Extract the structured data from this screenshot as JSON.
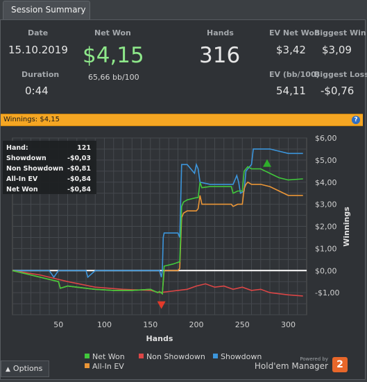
{
  "tab": {
    "label": "Session Summary"
  },
  "summary": {
    "date_label": "Date",
    "date_value": "15.10.2019",
    "net_won_label": "Net Won",
    "net_won_value": "$4,15",
    "bb_per_100": "65,66 bb/100",
    "hands_label": "Hands",
    "hands_value": "316",
    "ev_net_won_label": "EV Net Won",
    "ev_net_won_value": "$3,42",
    "biggest_win_label": "Biggest Win",
    "biggest_win_value": "$3,09",
    "duration_label": "Duration",
    "duration_value": "0:44",
    "ev_bb_label": "EV (bb/100)",
    "ev_bb_value": "54,11",
    "biggest_loss_label": "Biggest Loss",
    "biggest_loss_value": "-$0,76"
  },
  "winnings_bar": {
    "title": "Winnings: $4,15"
  },
  "tooltip": {
    "rows": [
      {
        "label": "Hand:",
        "value": "121"
      },
      {
        "label": "Showdown",
        "value": "-$0,03"
      },
      {
        "label": "Non Showdown",
        "value": "-$0,81"
      },
      {
        "label": "All-In EV",
        "value": "-$0,84"
      },
      {
        "label": "Net Won",
        "value": "-$0,84"
      }
    ]
  },
  "options": {
    "label": "Options"
  },
  "brand": {
    "powered_by": "Powered by",
    "name": "Hold'em Manager",
    "logo_text": "2"
  },
  "chart_data": {
    "type": "line",
    "xlabel": "Hands",
    "ylabel": "Winnings",
    "xlim": [
      0,
      320
    ],
    "ylim": [
      -2.0,
      6.0
    ],
    "x_ticks": [
      50,
      100,
      150,
      200,
      250,
      300
    ],
    "y_ticks": [
      -1,
      0,
      1,
      2,
      3,
      4,
      5,
      6
    ],
    "y_tick_labels": [
      "-$1,00",
      "$0,00",
      "$1,00",
      "$2,00",
      "$3,00",
      "$4,00",
      "$5,00",
      "$6,00"
    ],
    "grid": true,
    "legend_position": "bottom",
    "colors": {
      "Net Won": "#41c83c",
      "Non Showdown": "#dc4646",
      "Showdown": "#3c96dc",
      "All-In EV": "#eb9637"
    },
    "series": [
      {
        "name": "Net Won",
        "x": [
          0,
          20,
          40,
          50,
          52,
          60,
          70,
          80,
          90,
          110,
          130,
          150,
          158,
          160,
          163,
          165,
          175,
          182,
          184,
          186,
          190,
          200,
          202,
          204,
          206,
          215,
          230,
          238,
          240,
          245,
          250,
          252,
          254,
          256,
          260,
          270,
          280,
          290,
          300,
          316
        ],
        "y": [
          0,
          -0.2,
          -0.4,
          -0.5,
          -0.8,
          -0.7,
          -0.75,
          -0.8,
          -0.85,
          -0.9,
          -0.9,
          -0.85,
          -1.0,
          -0.95,
          -1.05,
          0.2,
          0.3,
          0.4,
          2.9,
          3.1,
          3.2,
          3.3,
          3.3,
          4.0,
          3.75,
          3.8,
          3.8,
          3.8,
          3.5,
          3.6,
          3.6,
          4.5,
          4.6,
          4.7,
          4.6,
          4.6,
          4.4,
          4.2,
          4.1,
          4.15
        ]
      },
      {
        "name": "Non Showdown",
        "x": [
          0,
          30,
          60,
          90,
          120,
          150,
          160,
          170,
          180,
          190,
          200,
          210,
          220,
          230,
          240,
          250,
          260,
          270,
          280,
          290,
          300,
          316
        ],
        "y": [
          0,
          -0.2,
          -0.5,
          -0.75,
          -0.85,
          -0.9,
          -1.0,
          -0.95,
          -0.9,
          -0.85,
          -0.7,
          -0.6,
          -0.75,
          -0.7,
          -0.85,
          -0.75,
          -0.9,
          -0.85,
          -1.0,
          -1.05,
          -1.1,
          -1.15
        ]
      },
      {
        "name": "Showdown",
        "x": [
          0,
          40,
          45,
          50,
          80,
          82,
          90,
          120,
          122,
          160,
          162,
          163,
          164,
          165,
          178,
          180,
          182,
          184,
          190,
          198,
          200,
          202,
          204,
          215,
          240,
          244,
          246,
          248,
          252,
          254,
          256,
          260,
          262,
          270,
          280,
          290,
          300,
          316
        ],
        "y": [
          0,
          0,
          -0.3,
          0,
          0,
          -0.3,
          0,
          0,
          0,
          0,
          -0.3,
          0,
          1.5,
          1.7,
          1.7,
          1.7,
          1.5,
          4.8,
          4.8,
          4.4,
          4.8,
          4.6,
          4.0,
          3.9,
          3.9,
          4.3,
          4.0,
          3.5,
          3.6,
          4.5,
          4.6,
          4.8,
          5.5,
          5.5,
          5.5,
          5.4,
          5.3,
          5.3
        ]
      },
      {
        "name": "All-In EV",
        "x": [
          0,
          20,
          40,
          50,
          52,
          60,
          70,
          80,
          90,
          110,
          130,
          150,
          158,
          160,
          163,
          165,
          175,
          180,
          182,
          184,
          186,
          190,
          200,
          202,
          204,
          206,
          215,
          230,
          238,
          240,
          245,
          250,
          252,
          254,
          256,
          260,
          270,
          280,
          290,
          300,
          316
        ],
        "y": [
          0,
          -0.2,
          -0.4,
          -0.5,
          -0.8,
          -0.7,
          -0.75,
          -0.8,
          -0.85,
          -0.9,
          -0.9,
          -0.85,
          -1.0,
          -0.95,
          -1.05,
          0.0,
          0.0,
          0.0,
          0.1,
          2.4,
          2.6,
          2.7,
          2.7,
          2.8,
          3.4,
          3.0,
          3.0,
          3.0,
          3.0,
          2.9,
          3.0,
          3.0,
          3.7,
          3.9,
          4.0,
          3.9,
          3.9,
          3.8,
          3.6,
          3.4,
          3.4
        ]
      }
    ],
    "markers": [
      {
        "type": "max",
        "series": "Net Won",
        "x": 277,
        "y": 4.85,
        "color": "#2fae2b"
      },
      {
        "type": "min",
        "series": "Net Won",
        "x": 162,
        "y": -1.55,
        "color": "#e23a2a"
      }
    ]
  }
}
